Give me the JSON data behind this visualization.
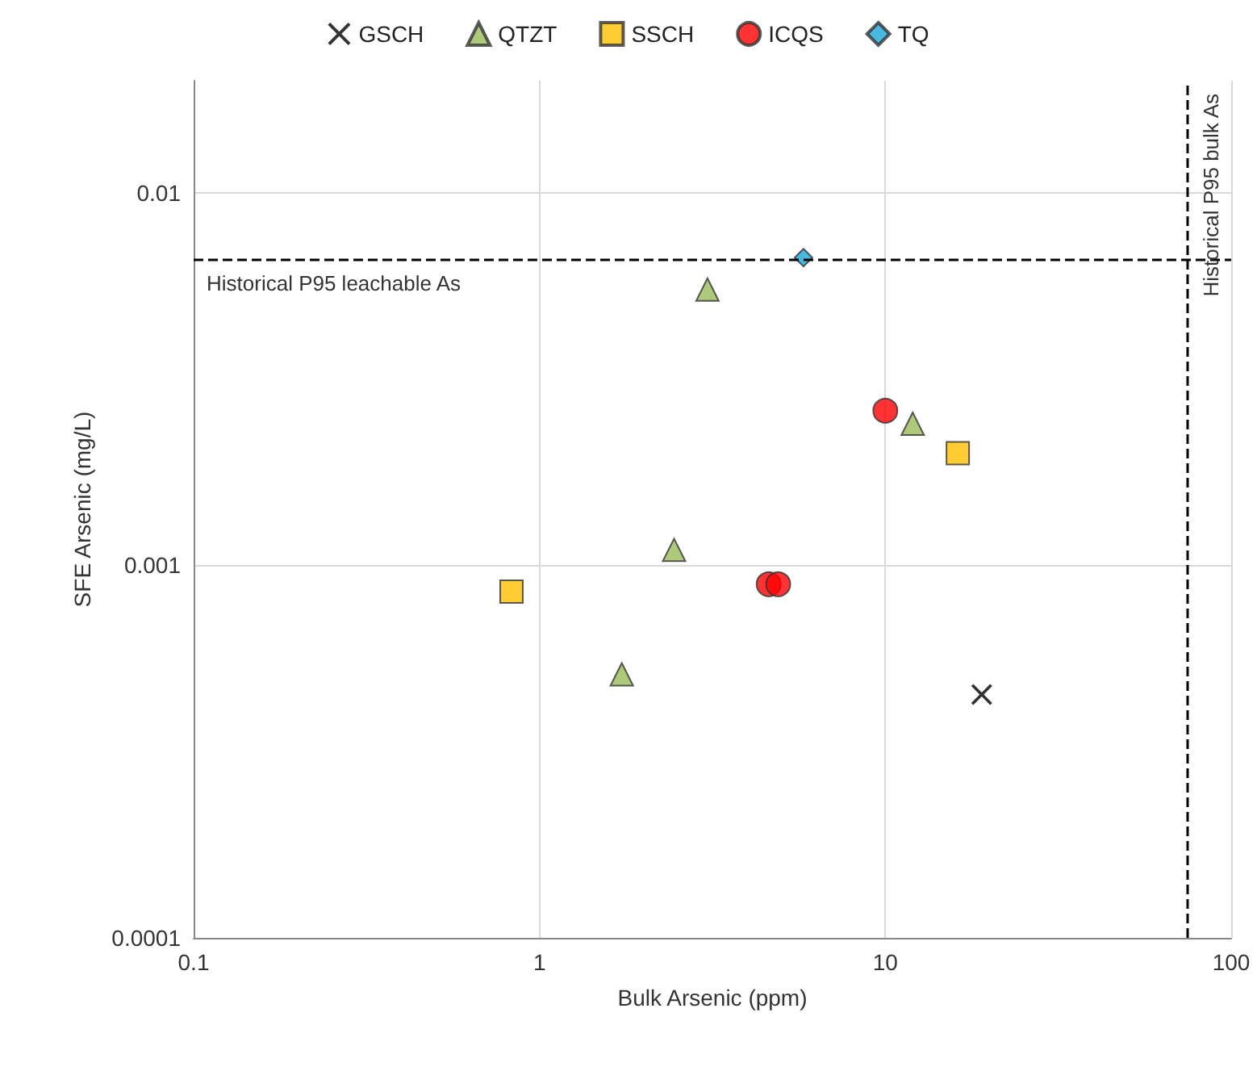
{
  "chart_data": {
    "type": "scatter",
    "xlabel": "Bulk Arsenic (ppm)",
    "ylabel": "SFE Arsenic (mg/L)",
    "log": "xy",
    "xlim": [
      0.1,
      100
    ],
    "xticks": [
      0.1,
      1,
      10,
      100
    ],
    "ylim": [
      0.0001,
      0.02
    ],
    "yticks": [
      0.0001,
      0.001,
      0.01
    ],
    "grid": true,
    "legend": "top",
    "series": [
      {
        "name": "GSCH",
        "color": "#000000",
        "marker": "cross",
        "x": [
          19
        ],
        "values": [
          0.00045
        ]
      },
      {
        "name": "QTZT",
        "color": "#9bbb59",
        "marker": "triangle",
        "x": [
          3.06,
          12,
          2.45,
          1.73
        ],
        "values": [
          0.0055,
          0.0024,
          0.0011,
          0.00051
        ]
      },
      {
        "name": "SSCH",
        "color": "#ffc000",
        "marker": "square",
        "x": [
          0.83,
          16.2
        ],
        "values": [
          0.00085,
          0.002
        ]
      },
      {
        "name": "ICQS",
        "color": "#ff0000",
        "marker": "circle",
        "x": [
          10,
          4.6,
          4.9
        ],
        "values": [
          0.0026,
          0.00089,
          0.00089
        ]
      },
      {
        "name": "TQ",
        "color": "#1ca8d8",
        "marker": "diamond",
        "x": [
          5.8
        ],
        "values": [
          0.0067
        ]
      }
    ],
    "ref_lines": [
      {
        "axis": "y",
        "value": 0.0066,
        "label": "Historical P95 leachable As",
        "line_style": "dashed",
        "color": "#000000"
      },
      {
        "axis": "x",
        "value": 75,
        "label": "Historical P95 bulk As",
        "line_style": "dashed",
        "color": "#000000"
      }
    ]
  }
}
